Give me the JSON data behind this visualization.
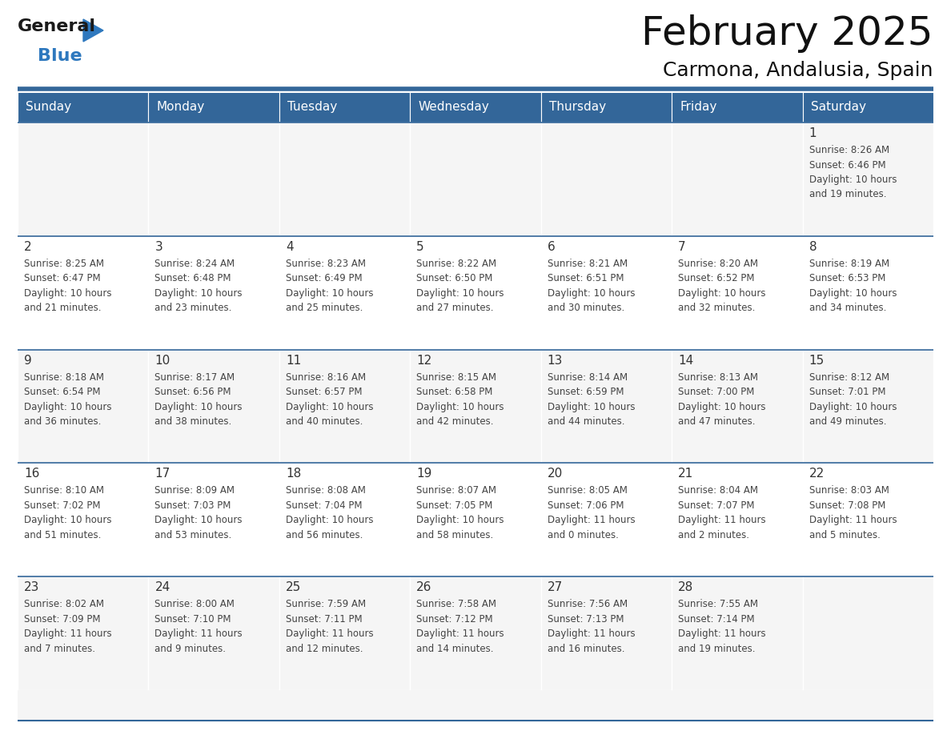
{
  "title": "February 2025",
  "subtitle": "Carmona, Andalusia, Spain",
  "header_color": "#336699",
  "header_text_color": "#FFFFFF",
  "cell_bg_color": "#FFFFFF",
  "row_alt_color": "#F0F0F0",
  "border_color": "#336699",
  "day_number_color": "#333333",
  "text_color": "#444444",
  "bg_color": "#FFFFFF",
  "days_of_week": [
    "Sunday",
    "Monday",
    "Tuesday",
    "Wednesday",
    "Thursday",
    "Friday",
    "Saturday"
  ],
  "calendar_data": [
    [
      null,
      null,
      null,
      null,
      null,
      null,
      {
        "day": "1",
        "sunrise": "8:26 AM",
        "sunset": "6:46 PM",
        "daylight_h": "10 hours",
        "daylight_m": "and 19 minutes."
      }
    ],
    [
      {
        "day": "2",
        "sunrise": "8:25 AM",
        "sunset": "6:47 PM",
        "daylight_h": "10 hours",
        "daylight_m": "and 21 minutes."
      },
      {
        "day": "3",
        "sunrise": "8:24 AM",
        "sunset": "6:48 PM",
        "daylight_h": "10 hours",
        "daylight_m": "and 23 minutes."
      },
      {
        "day": "4",
        "sunrise": "8:23 AM",
        "sunset": "6:49 PM",
        "daylight_h": "10 hours",
        "daylight_m": "and 25 minutes."
      },
      {
        "day": "5",
        "sunrise": "8:22 AM",
        "sunset": "6:50 PM",
        "daylight_h": "10 hours",
        "daylight_m": "and 27 minutes."
      },
      {
        "day": "6",
        "sunrise": "8:21 AM",
        "sunset": "6:51 PM",
        "daylight_h": "10 hours",
        "daylight_m": "and 30 minutes."
      },
      {
        "day": "7",
        "sunrise": "8:20 AM",
        "sunset": "6:52 PM",
        "daylight_h": "10 hours",
        "daylight_m": "and 32 minutes."
      },
      {
        "day": "8",
        "sunrise": "8:19 AM",
        "sunset": "6:53 PM",
        "daylight_h": "10 hours",
        "daylight_m": "and 34 minutes."
      }
    ],
    [
      {
        "day": "9",
        "sunrise": "8:18 AM",
        "sunset": "6:54 PM",
        "daylight_h": "10 hours",
        "daylight_m": "and 36 minutes."
      },
      {
        "day": "10",
        "sunrise": "8:17 AM",
        "sunset": "6:56 PM",
        "daylight_h": "10 hours",
        "daylight_m": "and 38 minutes."
      },
      {
        "day": "11",
        "sunrise": "8:16 AM",
        "sunset": "6:57 PM",
        "daylight_h": "10 hours",
        "daylight_m": "and 40 minutes."
      },
      {
        "day": "12",
        "sunrise": "8:15 AM",
        "sunset": "6:58 PM",
        "daylight_h": "10 hours",
        "daylight_m": "and 42 minutes."
      },
      {
        "day": "13",
        "sunrise": "8:14 AM",
        "sunset": "6:59 PM",
        "daylight_h": "10 hours",
        "daylight_m": "and 44 minutes."
      },
      {
        "day": "14",
        "sunrise": "8:13 AM",
        "sunset": "7:00 PM",
        "daylight_h": "10 hours",
        "daylight_m": "and 47 minutes."
      },
      {
        "day": "15",
        "sunrise": "8:12 AM",
        "sunset": "7:01 PM",
        "daylight_h": "10 hours",
        "daylight_m": "and 49 minutes."
      }
    ],
    [
      {
        "day": "16",
        "sunrise": "8:10 AM",
        "sunset": "7:02 PM",
        "daylight_h": "10 hours",
        "daylight_m": "and 51 minutes."
      },
      {
        "day": "17",
        "sunrise": "8:09 AM",
        "sunset": "7:03 PM",
        "daylight_h": "10 hours",
        "daylight_m": "and 53 minutes."
      },
      {
        "day": "18",
        "sunrise": "8:08 AM",
        "sunset": "7:04 PM",
        "daylight_h": "10 hours",
        "daylight_m": "and 56 minutes."
      },
      {
        "day": "19",
        "sunrise": "8:07 AM",
        "sunset": "7:05 PM",
        "daylight_h": "10 hours",
        "daylight_m": "and 58 minutes."
      },
      {
        "day": "20",
        "sunrise": "8:05 AM",
        "sunset": "7:06 PM",
        "daylight_h": "11 hours",
        "daylight_m": "and 0 minutes."
      },
      {
        "day": "21",
        "sunrise": "8:04 AM",
        "sunset": "7:07 PM",
        "daylight_h": "11 hours",
        "daylight_m": "and 2 minutes."
      },
      {
        "day": "22",
        "sunrise": "8:03 AM",
        "sunset": "7:08 PM",
        "daylight_h": "11 hours",
        "daylight_m": "and 5 minutes."
      }
    ],
    [
      {
        "day": "23",
        "sunrise": "8:02 AM",
        "sunset": "7:09 PM",
        "daylight_h": "11 hours",
        "daylight_m": "and 7 minutes."
      },
      {
        "day": "24",
        "sunrise": "8:00 AM",
        "sunset": "7:10 PM",
        "daylight_h": "11 hours",
        "daylight_m": "and 9 minutes."
      },
      {
        "day": "25",
        "sunrise": "7:59 AM",
        "sunset": "7:11 PM",
        "daylight_h": "11 hours",
        "daylight_m": "and 12 minutes."
      },
      {
        "day": "26",
        "sunrise": "7:58 AM",
        "sunset": "7:12 PM",
        "daylight_h": "11 hours",
        "daylight_m": "and 14 minutes."
      },
      {
        "day": "27",
        "sunrise": "7:56 AM",
        "sunset": "7:13 PM",
        "daylight_h": "11 hours",
        "daylight_m": "and 16 minutes."
      },
      {
        "day": "28",
        "sunrise": "7:55 AM",
        "sunset": "7:14 PM",
        "daylight_h": "11 hours",
        "daylight_m": "and 19 minutes."
      },
      null
    ]
  ],
  "logo_general_color": "#1a1a1a",
  "logo_blue_color": "#2E78BE",
  "logo_triangle_color": "#2E78BE",
  "title_fontsize": 36,
  "subtitle_fontsize": 18,
  "header_fontsize": 11,
  "day_number_fontsize": 11,
  "cell_text_fontsize": 8.5
}
